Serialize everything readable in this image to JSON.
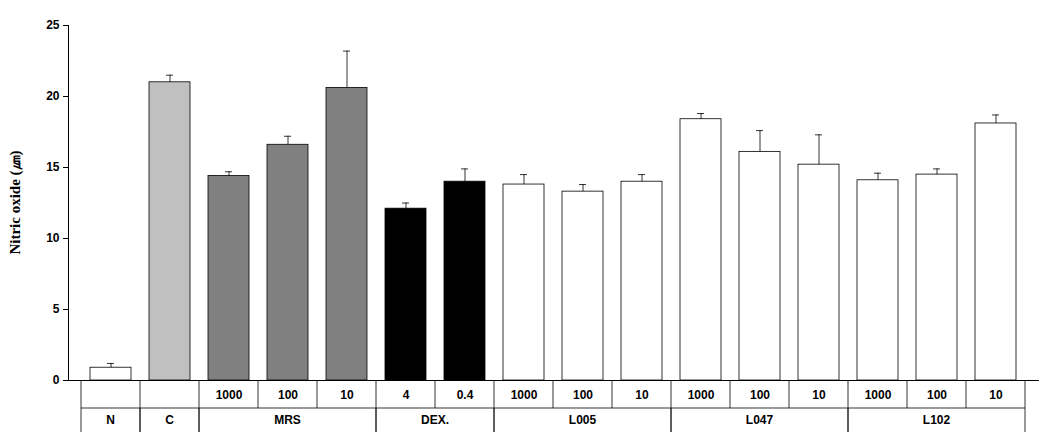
{
  "chart_data": {
    "type": "bar",
    "y_label": "Nitric oxide (㎛)",
    "categories": [
      null,
      null,
      "1000",
      "100",
      "10",
      "4",
      "0.4",
      "1000",
      "100",
      "10",
      "1000",
      "100",
      "10",
      "1000",
      "100",
      "10"
    ],
    "values": [
      0.9,
      21.0,
      14.4,
      16.6,
      20.6,
      12.1,
      14.0,
      13.8,
      13.3,
      14.0,
      18.4,
      16.1,
      15.2,
      14.1,
      14.5,
      18.1
    ],
    "errors": [
      0.3,
      0.5,
      0.3,
      0.6,
      2.6,
      0.4,
      0.9,
      0.7,
      0.5,
      0.5,
      0.4,
      1.5,
      2.1,
      0.5,
      0.4,
      0.6
    ],
    "colors": [
      "#ffffff",
      "#c0c0c0",
      "#808080",
      "#808080",
      "#808080",
      "#000000",
      "#000000",
      "#ffffff",
      "#ffffff",
      "#ffffff",
      "#ffffff",
      "#ffffff",
      "#ffffff",
      "#ffffff",
      "#ffffff",
      "#ffffff"
    ],
    "groups": [
      {
        "label": "N",
        "count": 1
      },
      {
        "label": "C",
        "count": 1
      },
      {
        "label": "MRS",
        "count": 3
      },
      {
        "label": "DEX.",
        "count": 2
      },
      {
        "label": "L005",
        "count": 3
      },
      {
        "label": "L047",
        "count": 3
      },
      {
        "label": "L102",
        "count": 3
      }
    ],
    "ylim": [
      0,
      25
    ],
    "yticks": [
      0,
      5,
      10,
      15,
      20,
      25
    ],
    "grid": false
  }
}
